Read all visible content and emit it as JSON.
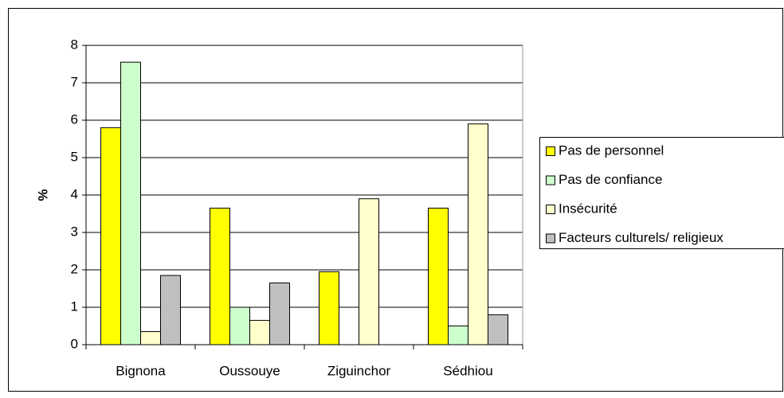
{
  "chart_data": {
    "type": "bar",
    "y_label": "%",
    "categories": [
      "Bignona",
      "Oussouye",
      "Ziguinchor",
      "Sédhiou"
    ],
    "series": [
      {
        "name": "Pas de personnel",
        "color": "#ffff00",
        "values": [
          5.8,
          3.65,
          1.95,
          3.65
        ]
      },
      {
        "name": "Pas de confiance",
        "color": "#ccffcc",
        "values": [
          7.55,
          1.0,
          0,
          0.5
        ]
      },
      {
        "name": "Insécurité",
        "color": "#ffffcc",
        "values": [
          0.35,
          0.65,
          3.9,
          5.9
        ]
      },
      {
        "name": "Facteurs culturels/ religieux",
        "color": "#c0c0c0",
        "values": [
          1.85,
          1.65,
          0,
          0.8
        ]
      }
    ],
    "ylim": [
      0,
      8
    ],
    "yticks": [
      0,
      1,
      2,
      3,
      4,
      5,
      6,
      7,
      8
    ],
    "grid": true,
    "legend": "right"
  }
}
